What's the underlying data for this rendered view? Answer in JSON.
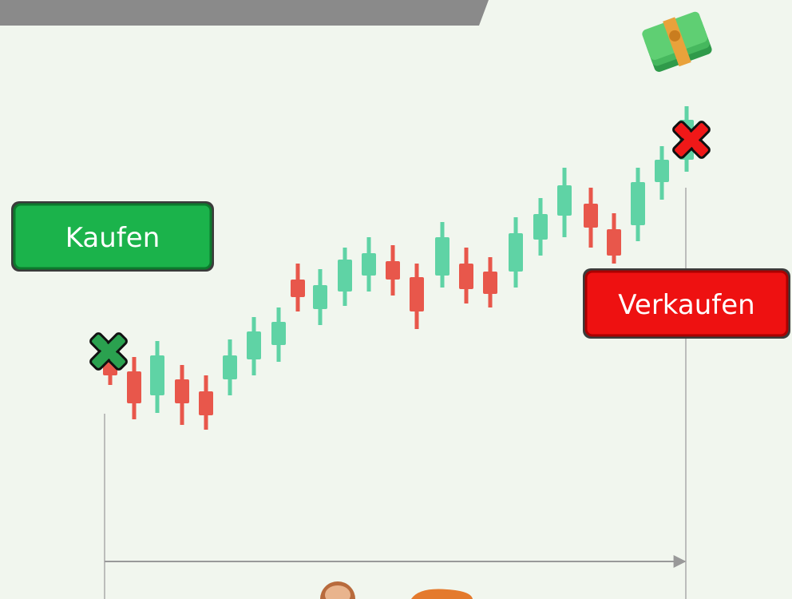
{
  "buttons": {
    "buy": "Kaufen",
    "sell": "Verkaufen"
  }
}
